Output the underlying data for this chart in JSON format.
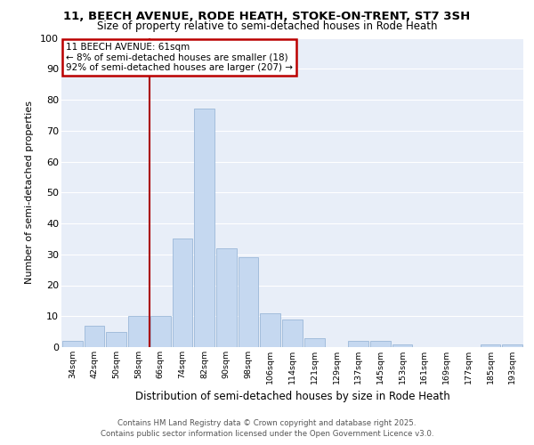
{
  "title_line1": "11, BEECH AVENUE, RODE HEATH, STOKE-ON-TRENT, ST7 3SH",
  "title_line2": "Size of property relative to semi-detached houses in Rode Heath",
  "xlabel": "Distribution of semi-detached houses by size in Rode Heath",
  "ylabel": "Number of semi-detached properties",
  "footer_line1": "Contains HM Land Registry data © Crown copyright and database right 2025.",
  "footer_line2": "Contains public sector information licensed under the Open Government Licence v3.0.",
  "categories": [
    "34sqm",
    "42sqm",
    "50sqm",
    "58sqm",
    "66sqm",
    "74sqm",
    "82sqm",
    "90sqm",
    "98sqm",
    "106sqm",
    "114sqm",
    "121sqm",
    "129sqm",
    "137sqm",
    "145sqm",
    "153sqm",
    "161sqm",
    "169sqm",
    "177sqm",
    "185sqm",
    "193sqm"
  ],
  "values": [
    2,
    7,
    5,
    10,
    10,
    35,
    77,
    32,
    29,
    11,
    9,
    3,
    0,
    2,
    2,
    1,
    0,
    0,
    0,
    1,
    1
  ],
  "bar_color": "#c5d8f0",
  "bar_edge_color": "#9bb8d8",
  "background_color": "#e8eef8",
  "grid_color": "#ffffff",
  "vline_x": 4,
  "vline_color": "#aa0000",
  "annotation_text": "11 BEECH AVENUE: 61sqm\n← 8% of semi-detached houses are smaller (18)\n92% of semi-detached houses are larger (207) →",
  "annotation_box_color": "#bb0000",
  "ylim": [
    0,
    100
  ],
  "yticks": [
    0,
    10,
    20,
    30,
    40,
    50,
    60,
    70,
    80,
    90,
    100
  ]
}
